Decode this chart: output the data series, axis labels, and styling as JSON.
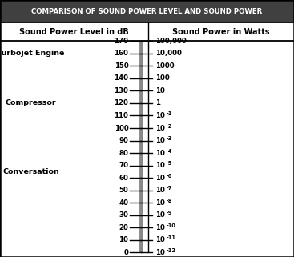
{
  "title": "COMPARISON OF SOUND POWER LEVEL AND SOUND POWER",
  "col1_header": "Sound Power Level in dB",
  "col2_header": "Sound Power in Watts",
  "db_values": [
    170,
    160,
    150,
    140,
    130,
    120,
    110,
    100,
    90,
    80,
    70,
    60,
    50,
    40,
    30,
    20,
    10,
    0
  ],
  "watts_labels": [
    "100,000",
    "10,000",
    "1000",
    "100",
    "10",
    "1",
    "10^{-1}",
    "10^{-2}",
    "10^{-3}",
    "10^{-4}",
    "10^{-5}",
    "10^{-6}",
    "10^{-7}",
    "10^{-8}",
    "10^{-9}",
    "10^{-10}",
    "10^{-11}",
    "10^{-12}"
  ],
  "watts_bases": [
    "100,000",
    "10,000",
    "1000",
    "100",
    "10",
    "1",
    "10",
    "10",
    "10",
    "10",
    "10",
    "10",
    "10",
    "10",
    "10",
    "10",
    "10",
    "10"
  ],
  "watts_exponents": [
    "",
    "",
    "",
    "",
    "",
    "",
    "-1",
    "-2",
    "-3",
    "-4",
    "-5",
    "-6",
    "-7",
    "-8",
    "-9",
    "-10",
    "-11",
    "-12"
  ],
  "side_labels": [
    {
      "text": "Turbojet Engine",
      "db": 160
    },
    {
      "text": "Compressor",
      "db": 120
    },
    {
      "text": "Conversation",
      "db": 65
    }
  ],
  "bg_color": "#ffffff",
  "title_bg": "#404040",
  "title_color": "#ffffff",
  "header_color": "#000000",
  "border_color": "#000000",
  "scale_line_color": "#888888",
  "tick_color": "#000000",
  "title_fontsize": 6.2,
  "header_fontsize": 7.0,
  "tick_fontsize": 6.2,
  "side_label_fontsize": 6.8
}
